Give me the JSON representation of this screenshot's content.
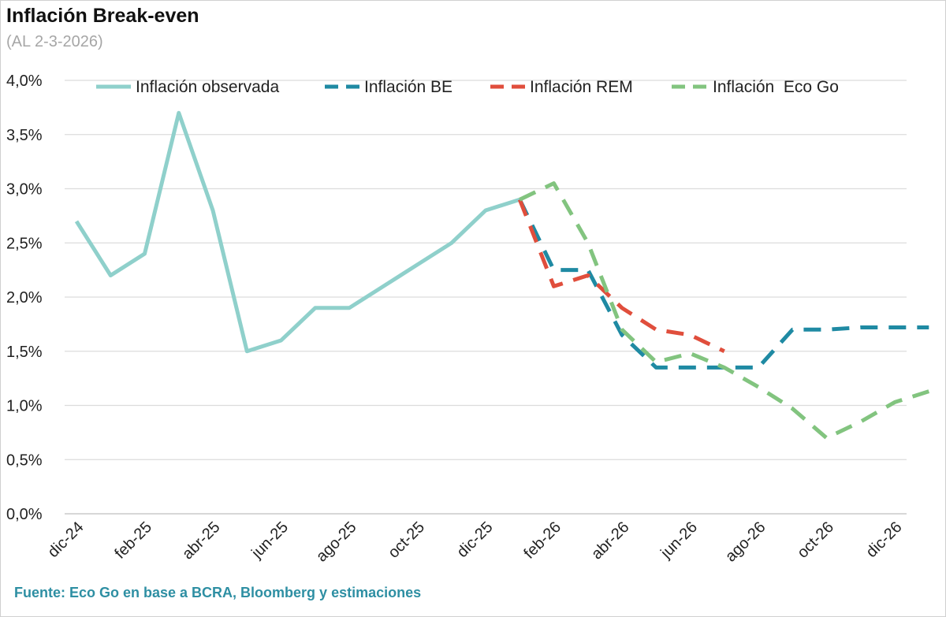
{
  "title": "Inflación Break-even",
  "subtitle": "(AL 2-3-2026)",
  "source": "Fuente: Eco Go en base a BCRA, Bloomberg y estimaciones",
  "chart_data": {
    "type": "line",
    "title": "Inflación Break-even",
    "subtitle": "(AL 2-3-2026)",
    "xlabel": "",
    "ylabel": "",
    "ylim": [
      0,
      4
    ],
    "y_ticks": [
      "0,0%",
      "0,5%",
      "1,0%",
      "1,5%",
      "2,0%",
      "2,5%",
      "3,0%",
      "3,5%",
      "4,0%"
    ],
    "y_tick_values": [
      0,
      0.5,
      1,
      1.5,
      2,
      2.5,
      3,
      3.5,
      4
    ],
    "grid": true,
    "legend_position": "top",
    "categories": [
      "dic-24",
      "ene-25",
      "feb-25",
      "mar-25",
      "abr-25",
      "may-25",
      "jun-25",
      "jul-25",
      "ago-25",
      "sep-25",
      "oct-25",
      "nov-25",
      "dic-25",
      "ene-26",
      "feb-26",
      "mar-26",
      "abr-26",
      "may-26",
      "jun-26",
      "jul-26",
      "ago-26",
      "sep-26",
      "oct-26",
      "nov-26",
      "dic-26",
      "ene-27"
    ],
    "x_tick_labels": [
      "dic-24",
      "feb-25",
      "abr-25",
      "jun-25",
      "ago-25",
      "oct-25",
      "dic-25",
      "feb-26",
      "abr-26",
      "jun-26",
      "ago-26",
      "oct-26",
      "dic-26"
    ],
    "x_tick_indices": [
      0,
      2,
      4,
      6,
      8,
      10,
      12,
      14,
      16,
      18,
      20,
      22,
      24
    ],
    "series": [
      {
        "name": "Inflación observada",
        "color": "#8fd0cb",
        "dashed": false,
        "x": [
          0,
          1,
          2,
          3,
          4,
          5,
          6,
          7,
          8,
          9,
          10,
          11,
          12,
          13
        ],
        "values": [
          2.7,
          2.2,
          2.4,
          3.7,
          2.8,
          1.5,
          1.6,
          1.9,
          1.9,
          2.1,
          2.3,
          2.5,
          2.8,
          2.9
        ]
      },
      {
        "name": "Inflación BE",
        "color": "#1f8aa3",
        "dashed": true,
        "x": [
          13,
          14,
          15,
          16,
          17,
          18,
          19,
          20,
          21,
          22,
          23,
          24,
          25
        ],
        "values": [
          2.9,
          2.25,
          2.25,
          1.65,
          1.35,
          1.35,
          1.35,
          1.35,
          1.7,
          1.7,
          1.72,
          1.72,
          1.72
        ]
      },
      {
        "name": "Inflación REM",
        "color": "#e04e3c",
        "dashed": true,
        "x": [
          13,
          14,
          15,
          16,
          17,
          18,
          19
        ],
        "values": [
          2.9,
          2.1,
          2.2,
          1.9,
          1.7,
          1.65,
          1.5
        ]
      },
      {
        "name": "Inflación  Eco Go",
        "color": "#82c47f",
        "dashed": true,
        "x": [
          13,
          14,
          15,
          16,
          17,
          18,
          19,
          20,
          21,
          22,
          23,
          24,
          25
        ],
        "values": [
          2.9,
          3.05,
          2.5,
          1.7,
          1.4,
          1.48,
          1.35,
          1.17,
          0.97,
          0.7,
          0.85,
          1.03,
          1.13
        ]
      }
    ]
  }
}
